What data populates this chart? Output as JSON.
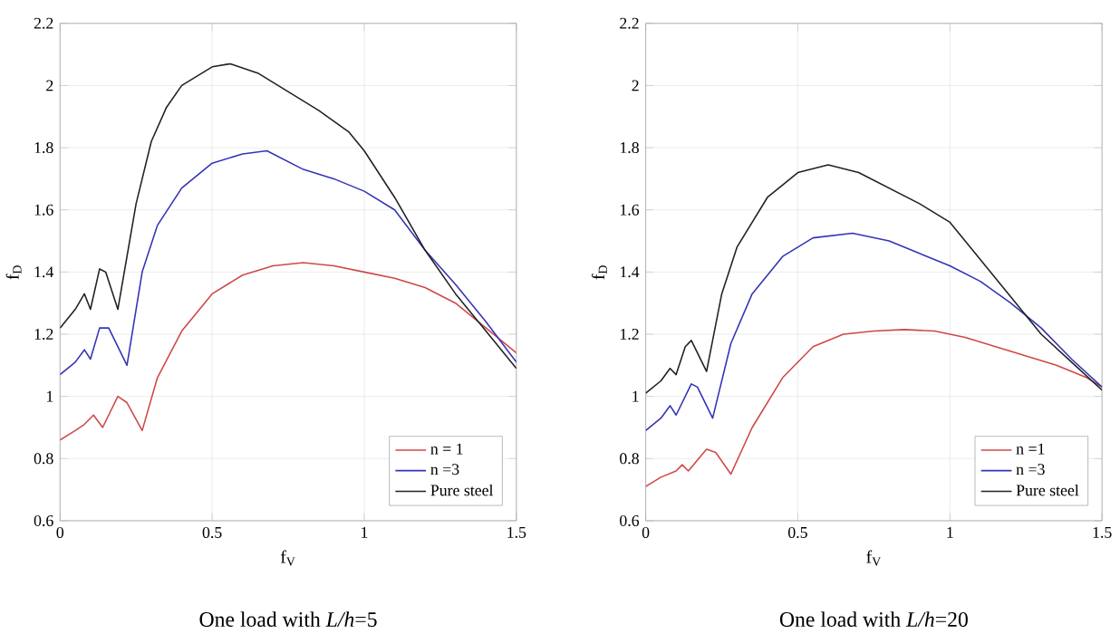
{
  "chart_data": [
    {
      "type": "line",
      "xlabel": "f$_{V}$",
      "ylabel": "f$_{D}$",
      "annotations": [
        "One load with *L/h*=5"
      ],
      "xlim": [
        0,
        1.5
      ],
      "ylim": [
        0.6,
        2.2
      ],
      "xticks": [
        0,
        0.5,
        1,
        1.5
      ],
      "yticks": [
        0.6,
        0.8,
        1,
        1.2,
        1.4,
        1.6,
        1.8,
        2,
        2.2
      ],
      "grid": true,
      "legend": "bottom right",
      "line_style": "solid",
      "series": [
        {
          "name": "n = 1",
          "color": "#d04848",
          "x": [
            0,
            0.05,
            0.08,
            0.11,
            0.14,
            0.19,
            0.22,
            0.27,
            0.32,
            0.4,
            0.5,
            0.6,
            0.7,
            0.8,
            0.9,
            1.0,
            1.1,
            1.2,
            1.3,
            1.4,
            1.5
          ],
          "values": [
            0.86,
            0.89,
            0.91,
            0.94,
            0.9,
            1.0,
            0.98,
            0.89,
            1.06,
            1.21,
            1.33,
            1.39,
            1.42,
            1.43,
            1.42,
            1.4,
            1.38,
            1.35,
            1.3,
            1.22,
            1.14
          ]
        },
        {
          "name": "n =3",
          "color": "#3434b8",
          "x": [
            0,
            0.05,
            0.08,
            0.1,
            0.13,
            0.16,
            0.22,
            0.27,
            0.32,
            0.4,
            0.5,
            0.6,
            0.68,
            0.8,
            0.9,
            1.0,
            1.1,
            1.2,
            1.3,
            1.4,
            1.5
          ],
          "values": [
            1.07,
            1.11,
            1.15,
            1.12,
            1.22,
            1.22,
            1.1,
            1.4,
            1.55,
            1.67,
            1.75,
            1.78,
            1.79,
            1.73,
            1.7,
            1.66,
            1.6,
            1.47,
            1.36,
            1.24,
            1.11
          ]
        },
        {
          "name": "Pure steel",
          "color": "#222222",
          "x": [
            0,
            0.05,
            0.08,
            0.1,
            0.13,
            0.15,
            0.19,
            0.25,
            0.3,
            0.35,
            0.4,
            0.5,
            0.56,
            0.65,
            0.75,
            0.85,
            0.95,
            1.0,
            1.1,
            1.2,
            1.3,
            1.4,
            1.5
          ],
          "values": [
            1.22,
            1.28,
            1.33,
            1.28,
            1.41,
            1.4,
            1.28,
            1.62,
            1.82,
            1.93,
            2.0,
            2.06,
            2.07,
            2.04,
            1.98,
            1.92,
            1.85,
            1.79,
            1.64,
            1.47,
            1.33,
            1.21,
            1.09
          ]
        }
      ]
    },
    {
      "type": "line",
      "xlabel": "f$_{V}$",
      "ylabel": "f$_{D}$",
      "annotations": [
        "One load with *L/h*=20"
      ],
      "xlim": [
        0,
        1.5
      ],
      "ylim": [
        0.6,
        2.2
      ],
      "xticks": [
        0,
        0.5,
        1,
        1.5
      ],
      "yticks": [
        0.6,
        0.8,
        1,
        1.2,
        1.4,
        1.6,
        1.8,
        2,
        2.2
      ],
      "grid": true,
      "legend": "bottom right",
      "line_style": "solid",
      "series": [
        {
          "name": "n =1",
          "color": "#d04848",
          "x": [
            0,
            0.05,
            0.1,
            0.12,
            0.14,
            0.2,
            0.23,
            0.28,
            0.35,
            0.45,
            0.55,
            0.65,
            0.75,
            0.85,
            0.95,
            1.05,
            1.15,
            1.25,
            1.35,
            1.45,
            1.5
          ],
          "values": [
            0.71,
            0.74,
            0.76,
            0.78,
            0.76,
            0.83,
            0.82,
            0.75,
            0.9,
            1.06,
            1.16,
            1.2,
            1.21,
            1.215,
            1.21,
            1.19,
            1.16,
            1.13,
            1.1,
            1.06,
            1.03
          ]
        },
        {
          "name": "n =3",
          "color": "#3434b8",
          "x": [
            0,
            0.05,
            0.08,
            0.1,
            0.15,
            0.17,
            0.22,
            0.28,
            0.35,
            0.45,
            0.55,
            0.68,
            0.8,
            0.9,
            1.0,
            1.1,
            1.2,
            1.3,
            1.4,
            1.5
          ],
          "values": [
            0.89,
            0.93,
            0.97,
            0.94,
            1.04,
            1.03,
            0.93,
            1.17,
            1.33,
            1.45,
            1.51,
            1.525,
            1.5,
            1.46,
            1.42,
            1.37,
            1.3,
            1.22,
            1.12,
            1.03
          ]
        },
        {
          "name": "Pure steel",
          "color": "#222222",
          "x": [
            0,
            0.05,
            0.08,
            0.1,
            0.13,
            0.15,
            0.2,
            0.25,
            0.3,
            0.4,
            0.5,
            0.6,
            0.7,
            0.8,
            0.9,
            1.0,
            1.1,
            1.2,
            1.3,
            1.4,
            1.5
          ],
          "values": [
            1.01,
            1.05,
            1.09,
            1.07,
            1.16,
            1.18,
            1.08,
            1.33,
            1.48,
            1.64,
            1.72,
            1.745,
            1.72,
            1.67,
            1.62,
            1.56,
            1.44,
            1.32,
            1.2,
            1.11,
            1.02
          ]
        }
      ]
    }
  ]
}
